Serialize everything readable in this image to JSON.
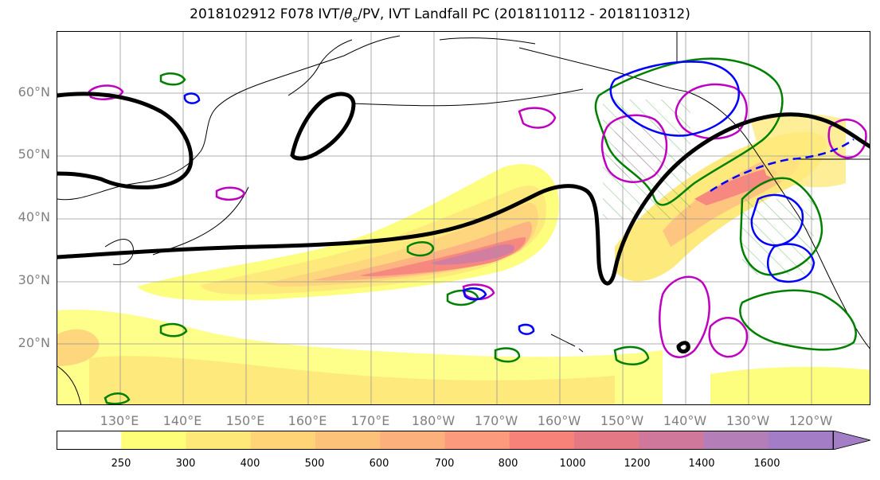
{
  "title_prefix": "2018102912 F078 IVT/",
  "title_theta": "θ",
  "title_sub": "e",
  "title_suffix": "/PV, IVT Landfall PC (2018110112 - 2018110312)",
  "lat_labels": [
    "60°N",
    "50°N",
    "40°N",
    "30°N",
    "20°N"
  ],
  "lon_labels": [
    "130°E",
    "140°E",
    "150°E",
    "160°E",
    "170°E",
    "180°W",
    "170°W",
    "160°W",
    "150°W",
    "140°W",
    "130°W",
    "120°W"
  ],
  "colorbar": {
    "ticks": [
      "250",
      "300",
      "400",
      "500",
      "600",
      "700",
      "800",
      "1000",
      "1200",
      "1400",
      "1600"
    ],
    "colors": [
      "#ffffff",
      "#fefe78",
      "#fee877",
      "#fed476",
      "#fdc27a",
      "#fcb07c",
      "#fb9a7c",
      "#f7827a",
      "#e57885",
      "#d0789b",
      "#b47eb8",
      "#a37dc6"
    ],
    "extend": "max"
  },
  "contour_colors": {
    "pv": "#000000",
    "theta_e_pos": "#008000",
    "ivt_neg": "#0000ff",
    "landfall": "#c000c0"
  }
}
